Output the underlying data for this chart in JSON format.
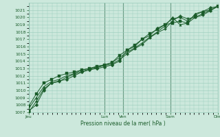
{
  "title": "Pression niveau de la mer( hPa )",
  "bg_color": "#cce8dc",
  "grid_color": "#99ccbb",
  "line_color": "#1a5c2a",
  "vline_color": "#336644",
  "ylim": [
    1007,
    1022
  ],
  "ytick_min": 1007,
  "ytick_max": 1021,
  "xtick_labels": [
    "Jeu",
    "Lun",
    "Ven",
    "Sam",
    "Dim"
  ],
  "xtick_positions": [
    0.0,
    0.4,
    0.5,
    0.75,
    1.0
  ],
  "series1": [
    1007.2,
    1008.0,
    1010.0,
    1011.0,
    1011.3,
    1011.5,
    1012.0,
    1012.5,
    1012.8,
    1013.0,
    1013.2,
    1013.5,
    1014.0,
    1015.5,
    1016.0,
    1017.0,
    1017.5,
    1018.5,
    1019.0,
    1019.8,
    1020.0,
    1019.5,
    1020.3,
    1020.8,
    1021.3,
    1021.5
  ],
  "series2": [
    1007.5,
    1009.0,
    1010.5,
    1011.2,
    1011.5,
    1012.0,
    1012.3,
    1012.8,
    1013.0,
    1013.2,
    1013.5,
    1013.8,
    1014.5,
    1015.2,
    1015.8,
    1016.5,
    1017.3,
    1018.0,
    1018.8,
    1020.0,
    1019.0,
    1019.2,
    1020.5,
    1020.8,
    1021.0,
    1021.5
  ],
  "series3": [
    1007.8,
    1009.5,
    1011.0,
    1011.5,
    1012.0,
    1012.3,
    1012.5,
    1012.8,
    1013.0,
    1013.3,
    1013.5,
    1013.8,
    1014.8,
    1015.5,
    1016.2,
    1017.0,
    1017.8,
    1018.3,
    1019.0,
    1019.2,
    1019.5,
    1019.2,
    1020.0,
    1020.5,
    1021.0,
    1021.5
  ],
  "series4": [
    1007.0,
    1008.5,
    1010.2,
    1011.0,
    1011.2,
    1011.8,
    1012.2,
    1012.6,
    1012.9,
    1013.1,
    1013.4,
    1013.6,
    1014.2,
    1015.0,
    1015.7,
    1016.3,
    1017.2,
    1017.9,
    1018.4,
    1019.5,
    1020.2,
    1019.8,
    1020.0,
    1020.3,
    1020.9,
    1021.5
  ],
  "n_points": 26
}
